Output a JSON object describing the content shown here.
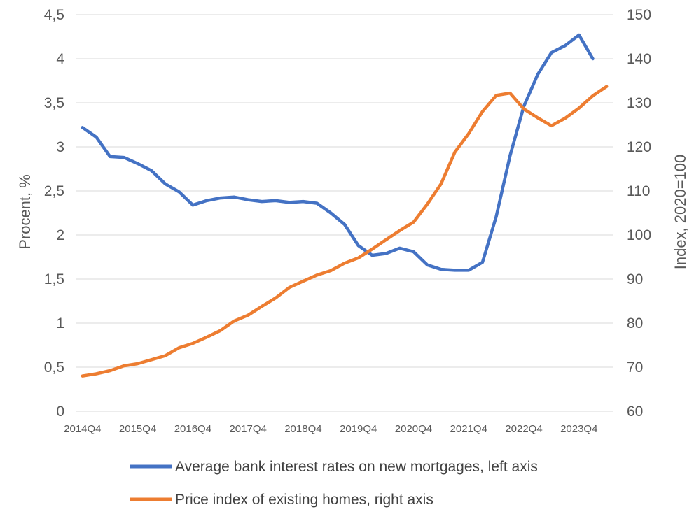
{
  "chart_data": {
    "type": "line",
    "title": "",
    "xlabel": "",
    "ylabel_left": "Procent, %",
    "ylabel_right": "Index, 2020=100",
    "ylim_left": [
      0,
      4.5
    ],
    "ylim_right": [
      60,
      150
    ],
    "y_ticks_left": [
      "0",
      "0,5",
      "1",
      "1,5",
      "2",
      "2,5",
      "3",
      "3,5",
      "4",
      "4,5"
    ],
    "y_ticks_right": [
      "60",
      "70",
      "80",
      "90",
      "100",
      "110",
      "120",
      "130",
      "140",
      "150"
    ],
    "x_tick_labels": [
      "2014Q4",
      "2015Q4",
      "2016Q4",
      "2017Q4",
      "2018Q4",
      "2019Q4",
      "2020Q4",
      "2021Q4",
      "2022Q4",
      "2023Q4"
    ],
    "grid": "horizontal",
    "legend_position": "bottom",
    "x": [
      "2014Q4",
      "2015Q1",
      "2015Q2",
      "2015Q3",
      "2015Q4",
      "2016Q1",
      "2016Q2",
      "2016Q3",
      "2016Q4",
      "2017Q1",
      "2017Q2",
      "2017Q3",
      "2017Q4",
      "2018Q1",
      "2018Q2",
      "2018Q3",
      "2018Q4",
      "2019Q1",
      "2019Q2",
      "2019Q3",
      "2019Q4",
      "2020Q1",
      "2020Q2",
      "2020Q3",
      "2020Q4",
      "2021Q1",
      "2021Q2",
      "2021Q3",
      "2021Q4",
      "2022Q1",
      "2022Q2",
      "2022Q3",
      "2022Q4",
      "2023Q1",
      "2023Q2",
      "2023Q3",
      "2023Q4",
      "2024Q1",
      "2024Q2"
    ],
    "series": [
      {
        "name": "Average bank interest rates on new mortgages, left axis",
        "axis": "left",
        "color": "#4472C4",
        "values": [
          3.22,
          3.11,
          2.89,
          2.88,
          2.81,
          2.73,
          2.58,
          2.49,
          2.34,
          2.39,
          2.42,
          2.43,
          2.4,
          2.38,
          2.39,
          2.37,
          2.38,
          2.36,
          2.25,
          2.12,
          1.88,
          1.77,
          1.79,
          1.85,
          1.81,
          1.66,
          1.61,
          1.6,
          1.6,
          1.69,
          2.21,
          2.9,
          3.46,
          3.82,
          4.07,
          4.15,
          4.27,
          4.0,
          null
        ]
      },
      {
        "name": "Price index of existing homes, right axis",
        "axis": "right",
        "color": "#ED7D31",
        "values": [
          68.0,
          68.5,
          69.2,
          70.3,
          70.8,
          71.7,
          72.6,
          74.4,
          75.4,
          76.8,
          78.3,
          80.5,
          81.8,
          83.8,
          85.7,
          88.1,
          89.5,
          90.9,
          91.9,
          93.6,
          94.8,
          96.8,
          98.9,
          101.0,
          102.9,
          107.0,
          111.6,
          118.8,
          123.0,
          128.0,
          131.7,
          132.2,
          128.6,
          126.6,
          124.8,
          126.5,
          128.8,
          131.6,
          133.7
        ]
      }
    ]
  }
}
